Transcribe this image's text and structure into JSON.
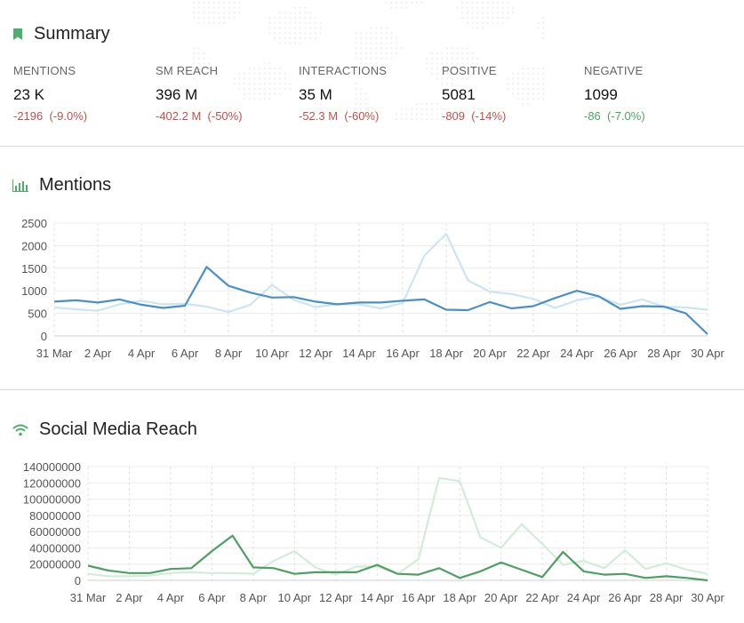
{
  "summary": {
    "title": "Summary",
    "metrics": [
      {
        "label": "MENTIONS",
        "value": "23 K",
        "delta": "-2196",
        "pct": "(-9.0%)",
        "trend": "negative"
      },
      {
        "label": "SM REACH",
        "value": "396 M",
        "delta": "-402.2 M",
        "pct": "(-50%)",
        "trend": "negative"
      },
      {
        "label": "INTERACTIONS",
        "value": "35 M",
        "delta": "-52.3 M",
        "pct": "(-60%)",
        "trend": "negative"
      },
      {
        "label": "POSITIVE",
        "value": "5081",
        "delta": "-809",
        "pct": "(-14%)",
        "trend": "negative"
      },
      {
        "label": "NEGATIVE",
        "value": "1099",
        "delta": "-86",
        "pct": "(-7.0%)",
        "trend": "positive"
      }
    ]
  },
  "mentions_section": {
    "title": "Mentions"
  },
  "reach_section": {
    "title": "Social Media Reach"
  },
  "colors": {
    "accent_green": "#4caf6e",
    "negative_red": "#c0504d",
    "mentions_current": "#4b8fc6",
    "mentions_previous": "#cde4f2",
    "reach_current": "#4d9f63",
    "reach_previous": "#d2ecd9"
  },
  "chart_data": [
    {
      "type": "line",
      "title": "Mentions",
      "categories": [
        "31 Mar",
        "1 Apr",
        "2 Apr",
        "3 Apr",
        "4 Apr",
        "5 Apr",
        "6 Apr",
        "7 Apr",
        "8 Apr",
        "9 Apr",
        "10 Apr",
        "11 Apr",
        "12 Apr",
        "13 Apr",
        "14 Apr",
        "15 Apr",
        "16 Apr",
        "17 Apr",
        "18 Apr",
        "19 Apr",
        "20 Apr",
        "21 Apr",
        "22 Apr",
        "23 Apr",
        "24 Apr",
        "25 Apr",
        "26 Apr",
        "27 Apr",
        "28 Apr",
        "29 Apr",
        "30 Apr"
      ],
      "tick_labels": [
        "31 Mar",
        "2 Apr",
        "4 Apr",
        "6 Apr",
        "8 Apr",
        "10 Apr",
        "12 Apr",
        "14 Apr",
        "16 Apr",
        "18 Apr",
        "20 Apr",
        "22 Apr",
        "24 Apr",
        "26 Apr",
        "28 Apr",
        "30 Apr"
      ],
      "y_ticks": [
        0,
        500,
        1000,
        1500,
        2000,
        2500
      ],
      "ylim": [
        0,
        2500
      ],
      "grid": true,
      "series": [
        {
          "values": [
            630,
            590,
            560,
            700,
            780,
            700,
            710,
            650,
            530,
            690,
            1130,
            800,
            640,
            700,
            700,
            610,
            730,
            1780,
            2260,
            1230,
            980,
            930,
            820,
            620,
            790,
            870,
            690,
            810,
            650,
            630,
            580
          ]
        },
        {
          "values": [
            760,
            790,
            740,
            810,
            690,
            620,
            670,
            1530,
            1110,
            960,
            850,
            860,
            760,
            700,
            740,
            740,
            780,
            810,
            580,
            570,
            750,
            610,
            660,
            840,
            1000,
            880,
            600,
            660,
            650,
            500,
            40
          ]
        }
      ]
    },
    {
      "type": "line",
      "title": "Social Media Reach",
      "categories": [
        "31 Mar",
        "1 Apr",
        "2 Apr",
        "3 Apr",
        "4 Apr",
        "5 Apr",
        "6 Apr",
        "7 Apr",
        "8 Apr",
        "9 Apr",
        "10 Apr",
        "11 Apr",
        "12 Apr",
        "13 Apr",
        "14 Apr",
        "15 Apr",
        "16 Apr",
        "17 Apr",
        "18 Apr",
        "19 Apr",
        "20 Apr",
        "21 Apr",
        "22 Apr",
        "23 Apr",
        "24 Apr",
        "25 Apr",
        "26 Apr",
        "27 Apr",
        "28 Apr",
        "29 Apr",
        "30 Apr"
      ],
      "tick_labels": [
        "31 Mar",
        "2 Apr",
        "4 Apr",
        "6 Apr",
        "8 Apr",
        "10 Apr",
        "12 Apr",
        "14 Apr",
        "16 Apr",
        "18 Apr",
        "20 Apr",
        "22 Apr",
        "24 Apr",
        "26 Apr",
        "28 Apr",
        "30 Apr"
      ],
      "y_ticks": [
        0,
        20000000,
        40000000,
        60000000,
        80000000,
        100000000,
        120000000,
        140000000
      ],
      "ylim": [
        0,
        140000000
      ],
      "grid": true,
      "series": [
        {
          "values": [
            8000000,
            5000000,
            5000000,
            6000000,
            9000000,
            10000000,
            9000000,
            9000000,
            8000000,
            24000000,
            36000000,
            16000000,
            7000000,
            17000000,
            17000000,
            8000000,
            26000000,
            126000000,
            122000000,
            53000000,
            40000000,
            69000000,
            45000000,
            19000000,
            24000000,
            15000000,
            37000000,
            14000000,
            21000000,
            13000000,
            8000000
          ]
        },
        {
          "values": [
            18000000,
            12000000,
            9000000,
            9000000,
            14000000,
            15000000,
            36000000,
            55000000,
            16000000,
            15000000,
            8000000,
            10000000,
            10000000,
            10000000,
            19000000,
            8000000,
            7000000,
            15000000,
            3000000,
            11000000,
            22000000,
            13000000,
            4000000,
            35000000,
            11000000,
            7000000,
            8000000,
            3000000,
            5000000,
            3000000,
            0
          ]
        }
      ]
    }
  ]
}
